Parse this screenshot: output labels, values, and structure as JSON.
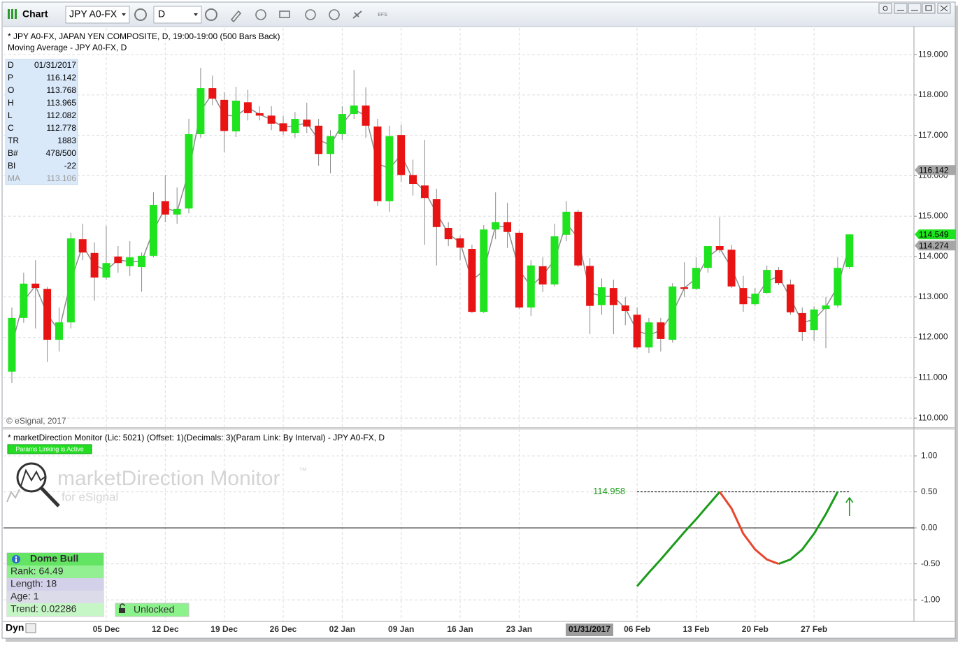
{
  "window": {
    "title": "Chart",
    "symbol": "JPY A0-FX",
    "interval": "D",
    "efs": "EFS",
    "status": "Dyn",
    "copyright": "© eSignal, 2017",
    "cursor_date": "01/31/2017"
  },
  "data_window": {
    "rows": [
      [
        "D",
        "01/31/2017"
      ],
      [
        "P",
        "116.142"
      ],
      [
        "O",
        "113.768"
      ],
      [
        "H",
        "113.965"
      ],
      [
        "L",
        "112.082"
      ],
      [
        "C",
        "112.778"
      ],
      [
        "TR",
        "1883"
      ],
      [
        "B#",
        "478/500"
      ],
      [
        "BI",
        "-22"
      ],
      [
        "MA",
        "113.106"
      ]
    ]
  },
  "watermark": {
    "title": "marketDirection Monitor",
    "trademark": "™",
    "subtitle": "for eSignal"
  },
  "study_box": {
    "title": "Dome Bull",
    "lines": [
      "Rank: 64.49",
      "Length: 18",
      "Age: 1",
      "Trend: 0.02286"
    ],
    "lock": "Unlocked"
  },
  "chart_data": [
    {
      "type": "candlestick",
      "legend_lines": [
        "* JPY A0-FX, JAPAN YEN COMPOSITE, D, 19:00-19:00 (500 Bars Back)",
        "Moving Average - JPY A0-FX, D"
      ],
      "categories": [
        null,
        null,
        null,
        null,
        null,
        null,
        null,
        null,
        "05 Dec",
        null,
        null,
        null,
        null,
        "12 Dec",
        null,
        null,
        null,
        null,
        "19 Dec",
        null,
        null,
        null,
        null,
        "26 Dec",
        null,
        null,
        null,
        null,
        "02 Jan",
        null,
        null,
        null,
        null,
        "09 Jan",
        null,
        null,
        null,
        null,
        "16 Jan",
        null,
        null,
        null,
        null,
        "23 Jan",
        null,
        null,
        null,
        null,
        null,
        null,
        null,
        null,
        null,
        "06 Feb",
        null,
        null,
        null,
        null,
        "13 Feb",
        null,
        null,
        null,
        null,
        "20 Feb",
        null,
        null,
        null,
        null,
        "27 Feb",
        null,
        null,
        null
      ],
      "open": [
        111.15,
        112.48,
        113.33,
        113.2,
        111.94,
        112.37,
        114.43,
        114.09,
        113.48,
        114.0,
        113.76,
        113.74,
        114.02,
        115.37,
        115.04,
        115.19,
        117.03,
        118.17,
        117.88,
        117.1,
        117.82,
        117.55,
        117.49,
        117.3,
        117.06,
        117.39,
        117.24,
        116.54,
        117.03,
        117.53,
        117.74,
        117.22,
        115.37,
        117.01,
        116.02,
        115.76,
        115.42,
        114.71,
        114.45,
        114.19,
        112.63,
        114.67,
        114.85,
        114.59,
        112.74,
        113.76,
        113.31,
        114.54,
        115.11,
        113.768,
        112.8,
        113.22,
        112.79,
        112.56,
        111.75,
        112.37,
        111.94,
        113.24,
        113.2,
        113.72,
        114.26,
        114.17,
        113.22,
        112.82,
        113.1,
        113.67,
        113.31,
        112.6,
        112.18,
        112.7,
        112.79,
        113.74
      ],
      "high": [
        112.74,
        113.6,
        113.91,
        113.25,
        112.74,
        114.59,
        114.81,
        114.35,
        114.76,
        114.26,
        114.38,
        114.1,
        115.59,
        116.02,
        115.71,
        117.41,
        118.67,
        118.48,
        118.07,
        118.2,
        118.13,
        117.72,
        117.72,
        117.49,
        117.58,
        117.81,
        117.41,
        117.13,
        117.72,
        118.62,
        118.19,
        117.41,
        117.24,
        117.27,
        116.4,
        116.89,
        115.68,
        114.85,
        114.52,
        114.29,
        114.78,
        115.59,
        115.33,
        114.64,
        113.91,
        113.98,
        114.81,
        115.37,
        115.16,
        113.965,
        113.46,
        113.43,
        113.0,
        112.74,
        112.48,
        112.48,
        113.34,
        113.86,
        113.98,
        114.26,
        114.97,
        114.29,
        113.52,
        113.22,
        113.78,
        113.74,
        113.43,
        112.74,
        112.77,
        113.0,
        113.98,
        114.55
      ],
      "low": [
        110.87,
        112.36,
        112.22,
        111.39,
        111.65,
        112.22,
        113.91,
        112.91,
        113.43,
        113.6,
        113.52,
        113.13,
        113.98,
        114.85,
        114.81,
        115.07,
        116.94,
        117.75,
        116.58,
        116.96,
        117.37,
        117.37,
        117.13,
        117.01,
        116.94,
        117.06,
        116.25,
        116.06,
        116.89,
        117.41,
        116.94,
        115.25,
        115.11,
        115.85,
        115.51,
        114.29,
        113.78,
        114.26,
        113.91,
        112.6,
        112.6,
        114.43,
        114.21,
        112.7,
        112.53,
        113.12,
        113.26,
        114.38,
        113.74,
        112.082,
        112.56,
        112.08,
        112.3,
        111.7,
        111.61,
        111.65,
        111.87,
        113.0,
        113.17,
        113.6,
        114.09,
        113.22,
        112.63,
        112.77,
        113.08,
        113.29,
        112.56,
        111.91,
        111.91,
        111.73,
        112.74,
        113.69
      ],
      "close": [
        112.48,
        113.33,
        113.22,
        111.94,
        112.37,
        114.45,
        114.1,
        113.48,
        113.84,
        113.84,
        113.98,
        114.02,
        115.28,
        115.04,
        115.18,
        117.03,
        118.17,
        117.91,
        117.11,
        117.86,
        117.55,
        117.49,
        117.29,
        117.1,
        117.41,
        117.22,
        116.54,
        116.98,
        117.53,
        117.74,
        117.24,
        115.37,
        116.98,
        116.02,
        115.8,
        115.45,
        114.73,
        114.43,
        114.22,
        112.63,
        114.67,
        114.85,
        114.61,
        112.74,
        113.78,
        113.31,
        114.5,
        115.11,
        113.78,
        112.778,
        113.24,
        112.8,
        112.65,
        111.75,
        112.37,
        111.96,
        113.26,
        113.2,
        113.72,
        114.26,
        114.16,
        113.26,
        112.82,
        113.08,
        113.67,
        113.34,
        112.62,
        112.13,
        112.69,
        112.79,
        113.72,
        114.549
      ],
      "ma": {
        "color": "#8c8c8c",
        "values": [
          111.82,
          112.9,
          113.28,
          112.57,
          112.16,
          113.41,
          114.27,
          113.79,
          113.66,
          113.92,
          113.87,
          113.88,
          114.65,
          115.2,
          115.11,
          116.11,
          117.6,
          118.04,
          117.5,
          117.48,
          117.69,
          117.52,
          117.39,
          117.2,
          117.24,
          117.31,
          116.89,
          116.76,
          117.28,
          117.64,
          117.49,
          116.3,
          116.18,
          116.52,
          115.91,
          115.61,
          115.08,
          114.57,
          114.34,
          113.41,
          113.65,
          114.76,
          114.73,
          113.67,
          113.26,
          113.54,
          113.91,
          114.83,
          114.45,
          113.106,
          113.02,
          113.01,
          112.72,
          112.16,
          112.06,
          112.17,
          112.6,
          113.22,
          113.46,
          113.99,
          114.21,
          113.72,
          113.02,
          112.95,
          113.39,
          113.51,
          112.97,
          112.37,
          112.44,
          112.75,
          113.26,
          114.274
        ]
      },
      "up_color": "#1fe31f",
      "down_color": "#e81414",
      "price_flags": [
        {
          "value": 116.142,
          "color": "#a6a6a6"
        },
        {
          "value": 114.549,
          "color": "#1fe31f"
        },
        {
          "value": 114.274,
          "color": "#a6a6a6"
        }
      ],
      "ylim": [
        109.76,
        119.66
      ],
      "yticks": [
        {
          "value": 110,
          "label": "110.000"
        },
        {
          "value": 111,
          "label": "111.000"
        },
        {
          "value": 112,
          "label": "112.000"
        },
        {
          "value": 113,
          "label": "113.000"
        },
        {
          "value": 114,
          "label": "114.000"
        },
        {
          "value": 115,
          "label": "115.000"
        },
        {
          "value": 116,
          "label": "116.000"
        },
        {
          "value": 117,
          "label": "117.000"
        },
        {
          "value": 118,
          "label": "118.000"
        },
        {
          "value": 119,
          "label": "119.000"
        }
      ],
      "grid": true
    },
    {
      "type": "line",
      "title": "* marketDirection Monitor (Lic: 5021) (Offset: 1)(Decimals: 3)(Param Link: By Interval) - JPY A0-FX, D",
      "badge": "Params Linking is Active",
      "series": [
        {
          "color": "#1a9c1a",
          "values": [
            null,
            null,
            null,
            null,
            null,
            null,
            null,
            null,
            null,
            null,
            null,
            null,
            null,
            null,
            null,
            null,
            null,
            null,
            null,
            null,
            null,
            null,
            null,
            null,
            null,
            null,
            null,
            null,
            null,
            null,
            null,
            null,
            null,
            null,
            null,
            null,
            null,
            null,
            null,
            null,
            null,
            null,
            null,
            null,
            null,
            null,
            null,
            null,
            null,
            null,
            null,
            null,
            null,
            -0.81,
            -0.62,
            -0.44,
            -0.25,
            -0.06,
            0.12,
            0.31,
            0.5,
            null,
            null,
            null,
            null,
            -0.5,
            -0.44,
            -0.3,
            -0.08,
            0.19,
            0.5,
            null
          ]
        },
        {
          "color": "#e8452c",
          "values": [
            null,
            null,
            null,
            null,
            null,
            null,
            null,
            null,
            null,
            null,
            null,
            null,
            null,
            null,
            null,
            null,
            null,
            null,
            null,
            null,
            null,
            null,
            null,
            null,
            null,
            null,
            null,
            null,
            null,
            null,
            null,
            null,
            null,
            null,
            null,
            null,
            null,
            null,
            null,
            null,
            null,
            null,
            null,
            null,
            null,
            null,
            null,
            null,
            null,
            null,
            null,
            null,
            null,
            null,
            null,
            null,
            null,
            null,
            null,
            null,
            0.5,
            0.27,
            -0.08,
            -0.3,
            -0.44,
            -0.5,
            null,
            null,
            null,
            null,
            null,
            null
          ]
        }
      ],
      "hline": {
        "value": 0.5,
        "label": "114.958"
      },
      "ylim": [
        -1.29,
        1.37
      ],
      "yticks": [
        {
          "value": -1,
          "label": "-1.00"
        },
        {
          "value": -0.5,
          "label": "-0.50"
        },
        {
          "value": 0,
          "label": "0.00"
        },
        {
          "value": 0.5,
          "label": "0.50"
        },
        {
          "value": 1,
          "label": "1.00"
        }
      ],
      "grid": true
    }
  ]
}
